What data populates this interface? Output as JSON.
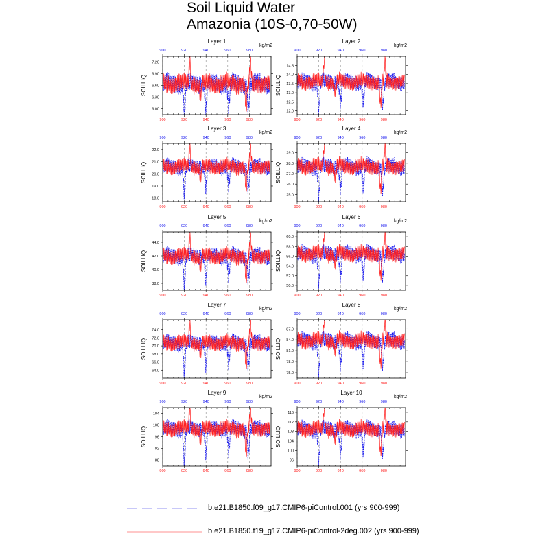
{
  "title_line1": "Soil Liquid Water",
  "title_line2": "Amazonia (10S-0,70-50W)",
  "units": "kg/m2",
  "ylabel": "SOILLIQ",
  "colors": {
    "series1": "#1010ee",
    "series2": "#ff2020",
    "grid": "#888888",
    "legend_series1": "#9090f0",
    "legend_series2": "#ff9090"
  },
  "legend": [
    {
      "name": "b.e21.B1850.f09_g17.CMIP6-piControl.001 (yrs 900-999)",
      "color": "#1010ee",
      "dash": "dashed"
    },
    {
      "name": "b.e21.B1850.f19_g17.CMIP6-piControl-2deg.002 (yrs 900-999)",
      "color": "#ff2020",
      "dash": "solid"
    }
  ],
  "chart_data": [
    {
      "type": "line",
      "title": "Layer 1",
      "ylabel": "SOILLIQ",
      "units": "kg/m2",
      "xlim": [
        900,
        1000
      ],
      "ylim": [
        5.85,
        7.35
      ],
      "xticks": [
        900,
        920,
        940,
        960,
        980
      ],
      "yticks": [
        "6.00",
        "6.30",
        "6.60",
        "6.90",
        "7.20"
      ],
      "ytick_values": [
        6.0,
        6.3,
        6.6,
        6.9,
        7.2
      ],
      "base": 6.65,
      "amp": 0.25,
      "series": [
        {
          "name": "b.e21.B1850.f09_g17.CMIP6-piControl.001",
          "years": [
            900,
            999
          ],
          "dips": [
            [
              920,
              0.78
            ],
            [
              940,
              0.7
            ],
            [
              961,
              0.58
            ],
            [
              979,
              0.65
            ]
          ]
        },
        {
          "name": "b.e21.B1850.f19_g17.CMIP6-piControl-2deg.002",
          "years": [
            900,
            999
          ],
          "peaks": [
            [
              925,
              0.6
            ],
            [
              981,
              0.55
            ]
          ],
          "dips": [
            [
              977,
              0.65
            ],
            [
              935,
              0.3
            ]
          ]
        }
      ]
    },
    {
      "type": "line",
      "title": "Layer 2",
      "ylabel": "SOILLIQ",
      "units": "kg/m2",
      "xlim": [
        900,
        1000
      ],
      "ylim": [
        11.8,
        15.0
      ],
      "xticks": [
        900,
        920,
        940,
        960,
        980
      ],
      "yticks": [
        "12.0",
        "12.5",
        "13.0",
        "13.5",
        "14.0",
        "14.5"
      ],
      "ytick_values": [
        12.0,
        12.5,
        13.0,
        13.5,
        14.0,
        14.5
      ],
      "base": 13.6,
      "amp": 0.45,
      "series": [
        {
          "name": "b.e21.B1850.f09_g17.CMIP6-piControl.001",
          "years": [
            900,
            999
          ],
          "dips": [
            [
              920,
              1.55
            ],
            [
              940,
              1.2
            ],
            [
              961,
              1.1
            ],
            [
              979,
              1.25
            ]
          ]
        },
        {
          "name": "b.e21.B1850.f19_g17.CMIP6-piControl-2deg.002",
          "years": [
            900,
            999
          ],
          "peaks": [
            [
              925,
              1.2
            ],
            [
              981,
              1.1
            ]
          ],
          "dips": [
            [
              977,
              1.3
            ],
            [
              935,
              0.6
            ]
          ]
        }
      ]
    },
    {
      "type": "line",
      "title": "Layer 3",
      "ylabel": "SOILLIQ",
      "units": "kg/m2",
      "xlim": [
        900,
        1000
      ],
      "ylim": [
        17.7,
        22.5
      ],
      "xticks": [
        900,
        920,
        940,
        960,
        980
      ],
      "yticks": [
        "18.0",
        "19.0",
        "20.0",
        "21.0",
        "22.0"
      ],
      "ytick_values": [
        18.0,
        19.0,
        20.0,
        21.0,
        22.0
      ],
      "base": 20.6,
      "amp": 0.65,
      "series": [
        {
          "name": "b.e21.B1850.f09_g17.CMIP6-piControl.001",
          "years": [
            900,
            999
          ],
          "dips": [
            [
              920,
              2.3
            ],
            [
              940,
              1.8
            ],
            [
              961,
              1.6
            ],
            [
              979,
              1.8
            ]
          ]
        },
        {
          "name": "b.e21.B1850.f19_g17.CMIP6-piControl-2deg.002",
          "years": [
            900,
            999
          ],
          "peaks": [
            [
              925,
              1.7
            ],
            [
              981,
              1.5
            ]
          ],
          "dips": [
            [
              977,
              1.9
            ],
            [
              935,
              0.9
            ]
          ]
        }
      ]
    },
    {
      "type": "line",
      "title": "Layer 4",
      "ylabel": "SOILLIQ",
      "units": "kg/m2",
      "xlim": [
        900,
        1000
      ],
      "ylim": [
        24.3,
        29.9
      ],
      "xticks": [
        900,
        920,
        940,
        960,
        980
      ],
      "yticks": [
        "25.0",
        "26.0",
        "27.0",
        "28.0",
        "29.0"
      ],
      "ytick_values": [
        25.0,
        26.0,
        27.0,
        28.0,
        29.0
      ],
      "base": 27.7,
      "amp": 0.8,
      "series": [
        {
          "name": "b.e21.B1850.f09_g17.CMIP6-piControl.001",
          "years": [
            900,
            999
          ],
          "dips": [
            [
              920,
              2.9
            ],
            [
              940,
              2.3
            ],
            [
              961,
              2.0
            ],
            [
              979,
              2.3
            ]
          ]
        },
        {
          "name": "b.e21.B1850.f19_g17.CMIP6-piControl-2deg.002",
          "years": [
            900,
            999
          ],
          "peaks": [
            [
              925,
              2.0
            ],
            [
              981,
              1.8
            ]
          ],
          "dips": [
            [
              977,
              2.4
            ],
            [
              935,
              1.1
            ]
          ]
        }
      ]
    },
    {
      "type": "line",
      "title": "Layer 5",
      "ylabel": "SOILLIQ",
      "units": "kg/m2",
      "xlim": [
        900,
        1000
      ],
      "ylim": [
        37.0,
        45.5
      ],
      "xticks": [
        900,
        920,
        940,
        960,
        980
      ],
      "yticks": [
        "38.0",
        "40.0",
        "42.0",
        "44.0"
      ],
      "ytick_values": [
        38.0,
        40.0,
        42.0,
        44.0
      ],
      "base": 42.0,
      "amp": 1.2,
      "series": [
        {
          "name": "b.e21.B1850.f09_g17.CMIP6-piControl.001",
          "years": [
            900,
            999
          ],
          "dips": [
            [
              920,
              4.4
            ],
            [
              940,
              3.5
            ],
            [
              961,
              3.0
            ],
            [
              979,
              3.4
            ]
          ]
        },
        {
          "name": "b.e21.B1850.f19_g17.CMIP6-piControl-2deg.002",
          "years": [
            900,
            999
          ],
          "peaks": [
            [
              925,
              3.0
            ],
            [
              981,
              2.7
            ]
          ],
          "dips": [
            [
              977,
              3.6
            ],
            [
              935,
              1.6
            ]
          ]
        }
      ]
    },
    {
      "type": "line",
      "title": "Layer 6",
      "ylabel": "SOILLIQ",
      "units": "kg/m2",
      "xlim": [
        900,
        1000
      ],
      "ylim": [
        49.0,
        61.0
      ],
      "xticks": [
        900,
        920,
        940,
        960,
        980
      ],
      "yticks": [
        "50.0",
        "52.0",
        "54.0",
        "56.0",
        "58.0",
        "60.0"
      ],
      "ytick_values": [
        50.0,
        52.0,
        54.0,
        56.0,
        58.0,
        60.0
      ],
      "base": 56.5,
      "amp": 1.7,
      "series": [
        {
          "name": "b.e21.B1850.f09_g17.CMIP6-piControl.001",
          "years": [
            900,
            999
          ],
          "dips": [
            [
              920,
              6.2
            ],
            [
              940,
              5.0
            ],
            [
              961,
              4.3
            ],
            [
              979,
              4.8
            ]
          ]
        },
        {
          "name": "b.e21.B1850.f19_g17.CMIP6-piControl-2deg.002",
          "years": [
            900,
            999
          ],
          "peaks": [
            [
              925,
              4.2
            ],
            [
              981,
              3.8
            ]
          ],
          "dips": [
            [
              977,
              5.0
            ],
            [
              935,
              2.2
            ]
          ]
        }
      ]
    },
    {
      "type": "line",
      "title": "Layer 7",
      "ylabel": "SOILLIQ",
      "units": "kg/m2",
      "xlim": [
        900,
        1000
      ],
      "ylim": [
        62.0,
        76.5
      ],
      "xticks": [
        900,
        920,
        940,
        960,
        980
      ],
      "yticks": [
        "64.0",
        "66.0",
        "68.0",
        "70.0",
        "72.0",
        "74.0"
      ],
      "ytick_values": [
        64.0,
        66.0,
        68.0,
        70.0,
        72.0,
        74.0
      ],
      "base": 70.8,
      "amp": 2.0,
      "series": [
        {
          "name": "b.e21.B1850.f09_g17.CMIP6-piControl.001",
          "years": [
            900,
            999
          ],
          "dips": [
            [
              920,
              7.6
            ],
            [
              940,
              6.0
            ],
            [
              961,
              5.2
            ],
            [
              979,
              5.8
            ]
          ]
        },
        {
          "name": "b.e21.B1850.f19_g17.CMIP6-piControl-2deg.002",
          "years": [
            900,
            999
          ],
          "peaks": [
            [
              925,
              5.0
            ],
            [
              981,
              4.6
            ]
          ],
          "dips": [
            [
              977,
              6.0
            ],
            [
              935,
              2.6
            ]
          ]
        }
      ]
    },
    {
      "type": "line",
      "title": "Layer 8",
      "ylabel": "SOILLIQ",
      "units": "kg/m2",
      "xlim": [
        900,
        1000
      ],
      "ylim": [
        73.5,
        89.5
      ],
      "xticks": [
        900,
        920,
        940,
        960,
        980
      ],
      "yticks": [
        "75.0",
        "78.0",
        "81.0",
        "84.0",
        "87.0"
      ],
      "ytick_values": [
        75.0,
        78.0,
        81.0,
        84.0,
        87.0
      ],
      "base": 83.8,
      "amp": 2.3,
      "series": [
        {
          "name": "b.e21.B1850.f09_g17.CMIP6-piControl.001",
          "years": [
            900,
            999
          ],
          "dips": [
            [
              920,
              8.8
            ],
            [
              940,
              7.0
            ],
            [
              961,
              6.0
            ],
            [
              979,
              6.8
            ]
          ]
        },
        {
          "name": "b.e21.B1850.f19_g17.CMIP6-piControl-2deg.002",
          "years": [
            900,
            999
          ],
          "peaks": [
            [
              925,
              5.8
            ],
            [
              981,
              5.3
            ]
          ],
          "dips": [
            [
              977,
              7.0
            ],
            [
              935,
              3.0
            ]
          ]
        }
      ]
    },
    {
      "type": "line",
      "title": "Layer 9",
      "ylabel": "SOILLIQ",
      "units": "kg/m2",
      "xlim": [
        900,
        1000
      ],
      "ylim": [
        86.0,
        106.0
      ],
      "xticks": [
        900,
        920,
        940,
        960,
        980
      ],
      "yticks": [
        "88",
        "92",
        "96",
        "100",
        "104"
      ],
      "ytick_values": [
        88,
        92,
        96,
        100,
        104
      ],
      "base": 98.8,
      "amp": 2.8,
      "series": [
        {
          "name": "b.e21.B1850.f09_g17.CMIP6-piControl.001",
          "years": [
            900,
            999
          ],
          "dips": [
            [
              920,
              11.5
            ],
            [
              940,
              9.0
            ],
            [
              961,
              7.8
            ],
            [
              979,
              8.8
            ]
          ]
        },
        {
          "name": "b.e21.B1850.f19_g17.CMIP6-piControl-2deg.002",
          "years": [
            900,
            999
          ],
          "peaks": [
            [
              925,
              7.5
            ],
            [
              981,
              6.8
            ]
          ],
          "dips": [
            [
              977,
              9.0
            ],
            [
              935,
              4.0
            ]
          ]
        }
      ]
    },
    {
      "type": "line",
      "title": "Layer 10",
      "ylabel": "SOILLIQ",
      "units": "kg/m2",
      "xlim": [
        900,
        1000
      ],
      "ylim": [
        93.5,
        118.0
      ],
      "xticks": [
        900,
        920,
        940,
        960,
        980
      ],
      "yticks": [
        "96",
        "100",
        "104",
        "108",
        "112",
        "116"
      ],
      "ytick_values": [
        96,
        100,
        104,
        108,
        112,
        116
      ],
      "base": 109.0,
      "amp": 3.4,
      "series": [
        {
          "name": "b.e21.B1850.f09_g17.CMIP6-piControl.001",
          "years": [
            900,
            999
          ],
          "dips": [
            [
              920,
              13.5
            ],
            [
              940,
              10.5
            ],
            [
              961,
              9.2
            ],
            [
              979,
              10.4
            ]
          ]
        },
        {
          "name": "b.e21.B1850.f19_g17.CMIP6-piControl-2deg.002",
          "years": [
            900,
            999
          ],
          "peaks": [
            [
              925,
              8.8
            ],
            [
              981,
              8.0
            ]
          ],
          "dips": [
            [
              977,
              10.5
            ],
            [
              935,
              4.7
            ]
          ]
        }
      ]
    }
  ]
}
